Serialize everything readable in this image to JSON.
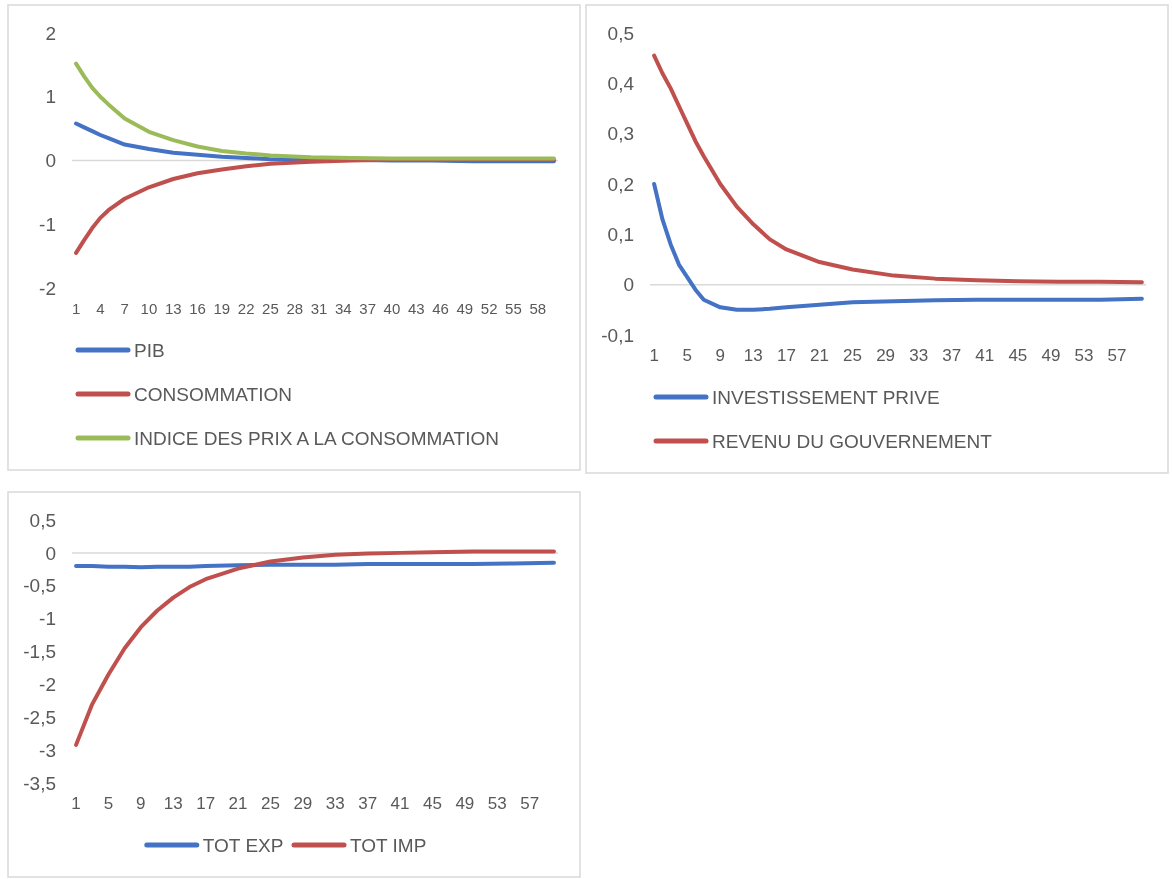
{
  "chart_data": [
    {
      "type": "line",
      "x": [
        1,
        2,
        3,
        4,
        5,
        7,
        10,
        13,
        16,
        19,
        22,
        25,
        30,
        35,
        40,
        45,
        50,
        55,
        60
      ],
      "xlim": [
        0.5,
        60.5
      ],
      "xticks": [
        1,
        4,
        7,
        10,
        13,
        16,
        19,
        22,
        25,
        28,
        31,
        34,
        37,
        40,
        43,
        46,
        49,
        52,
        55,
        58
      ],
      "ylim": [
        -2,
        2
      ],
      "yticks": [
        -2,
        -1,
        0,
        1,
        2
      ],
      "ref_lines": [
        {
          "axis": "y",
          "value": 0,
          "color": "#d9d9d9"
        }
      ],
      "legend": "bottom",
      "line_style": "solid",
      "marker": "none",
      "series": [
        {
          "name": "PIB",
          "color": "#4472c4",
          "values": [
            0.58,
            0.52,
            0.46,
            0.4,
            0.35,
            0.25,
            0.18,
            0.12,
            0.09,
            0.06,
            0.04,
            0.02,
            0.01,
            0.01,
            0,
            0,
            -0.01,
            -0.01,
            -0.01
          ]
        },
        {
          "name": "CONSOMMATION",
          "color": "#c0504d",
          "values": [
            -1.45,
            -1.25,
            -1.06,
            -0.9,
            -0.78,
            -0.6,
            -0.42,
            -0.29,
            -0.2,
            -0.14,
            -0.09,
            -0.05,
            -0.02,
            0,
            0.01,
            0.01,
            0.01,
            0.01,
            0.01
          ]
        },
        {
          "name": "INDICE DES PRIX A LA CONSOMMATION",
          "color": "#9bbb59",
          "values": [
            1.52,
            1.32,
            1.14,
            1.0,
            0.88,
            0.66,
            0.45,
            0.32,
            0.22,
            0.15,
            0.11,
            0.08,
            0.05,
            0.04,
            0.03,
            0.03,
            0.03,
            0.03,
            0.03
          ]
        }
      ]
    },
    {
      "type": "line",
      "x": [
        1,
        2,
        3,
        4,
        5,
        6,
        7,
        9,
        11,
        13,
        15,
        17,
        21,
        25,
        30,
        35,
        40,
        45,
        50,
        55,
        60
      ],
      "xlim": [
        0.5,
        60.5
      ],
      "xticks": [
        1,
        5,
        9,
        13,
        17,
        21,
        25,
        29,
        33,
        37,
        41,
        45,
        49,
        53,
        57
      ],
      "ylim": [
        -0.1,
        0.5
      ],
      "yticks": [
        {
          "value": -0.1,
          "label": "-0,1"
        },
        0,
        {
          "value": 0.1,
          "label": "0,1"
        },
        {
          "value": 0.2,
          "label": "0,2"
        },
        {
          "value": 0.3,
          "label": "0,3"
        },
        {
          "value": 0.4,
          "label": "0,4"
        },
        {
          "value": 0.5,
          "label": "0,5"
        }
      ],
      "ref_lines": [
        {
          "axis": "y",
          "value": 0,
          "color": "#d9d9d9"
        }
      ],
      "legend": "bottom",
      "line_style": "solid",
      "marker": "none",
      "series": [
        {
          "name": "INVESTISSEMENT PRIVE",
          "color": "#4472c4",
          "values": [
            0.2,
            0.13,
            0.08,
            0.04,
            0.015,
            -0.01,
            -0.03,
            -0.045,
            -0.05,
            -0.05,
            -0.048,
            -0.045,
            -0.04,
            -0.035,
            -0.033,
            -0.031,
            -0.03,
            -0.03,
            -0.03,
            -0.03,
            -0.028
          ]
        },
        {
          "name": "REVENU DU GOUVERNEMENT",
          "color": "#c0504d",
          "values": [
            0.455,
            0.42,
            0.39,
            0.355,
            0.32,
            0.285,
            0.255,
            0.2,
            0.155,
            0.12,
            0.09,
            0.07,
            0.045,
            0.03,
            0.018,
            0.012,
            0.009,
            0.007,
            0.006,
            0.006,
            0.005
          ]
        }
      ]
    },
    {
      "type": "line",
      "x": [
        1,
        3,
        5,
        7,
        9,
        11,
        13,
        15,
        17,
        21,
        25,
        29,
        33,
        37,
        41,
        45,
        50,
        55,
        60
      ],
      "xlim": [
        0.5,
        60.5
      ],
      "xticks": [
        1,
        5,
        9,
        13,
        17,
        21,
        25,
        29,
        33,
        37,
        41,
        45,
        49,
        53,
        57
      ],
      "ylim": [
        -3.5,
        0.5
      ],
      "yticks": [
        {
          "value": -3.5,
          "label": "-3,5"
        },
        -3,
        {
          "value": -2.5,
          "label": "-2,5"
        },
        -2,
        {
          "value": -1.5,
          "label": "-1,5"
        },
        -1,
        {
          "value": -0.5,
          "label": "-0,5"
        },
        0,
        {
          "value": 0.5,
          "label": "0,5"
        }
      ],
      "ref_lines": [
        {
          "axis": "y",
          "value": 0,
          "color": "#d9d9d9"
        }
      ],
      "legend": "bottom",
      "line_style": "solid",
      "marker": "none",
      "series": [
        {
          "name": "TOT EXP",
          "color": "#4472c4",
          "values": [
            -0.2,
            -0.2,
            -0.21,
            -0.21,
            -0.22,
            -0.21,
            -0.21,
            -0.21,
            -0.2,
            -0.19,
            -0.18,
            -0.18,
            -0.18,
            -0.17,
            -0.17,
            -0.17,
            -0.17,
            -0.16,
            -0.15
          ]
        },
        {
          "name": "TOT IMP",
          "color": "#c0504d",
          "values": [
            -2.92,
            -2.3,
            -1.85,
            -1.45,
            -1.13,
            -0.88,
            -0.68,
            -0.52,
            -0.4,
            -0.24,
            -0.13,
            -0.07,
            -0.03,
            -0.01,
            0,
            0.01,
            0.02,
            0.02,
            0.02
          ]
        }
      ]
    }
  ]
}
